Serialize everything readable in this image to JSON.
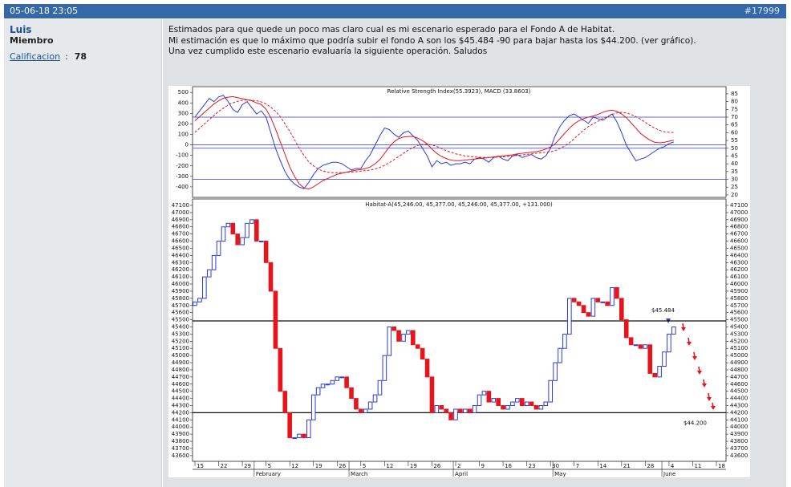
{
  "post": {
    "date": "05-06-18 23:05",
    "id": "#17999",
    "user": "Luis",
    "role": "Miembro",
    "rating_label": "Calificacion",
    "rating_separator": ":",
    "rating": 78,
    "body": [
      "Estimados para que quede un poco mas claro cual es mi escenario esperado para el Fondo A de Habitat.",
      "Mi estimación es que lo máximo que podría subir el  fondo A son los $45.484 -90 para bajar hasta los $44.200. (ver gráfico).",
      "Una vez cumplido este escenario evaluaría la siguiente operación. Saludos"
    ]
  },
  "chart_data": [
    {
      "type": "line",
      "title": "Relative Strength Index(55.3923), MACD (33.8603)",
      "ylim": [
        -500,
        555
      ],
      "yticks": [
        500,
        400,
        300,
        200,
        100,
        0,
        -100,
        -200,
        -300,
        -400
      ],
      "y2lim": [
        18.4,
        89.6
      ],
      "y2ticks": [
        85,
        80,
        75,
        70,
        65,
        60,
        55,
        50,
        45,
        40,
        35,
        30,
        25,
        20
      ],
      "levels": [
        0
      ],
      "y2_levels": [
        70,
        50,
        30
      ],
      "level_color": "#2b3bd6",
      "series": [
        {
          "color": "#2b3bd6",
          "axis": "y2",
          "values": [
            70,
            74,
            78,
            82,
            80,
            83,
            84,
            80,
            75,
            73,
            78,
            80,
            76,
            72,
            74,
            70,
            60,
            50,
            42,
            35,
            30,
            27,
            25,
            24,
            28,
            33,
            37,
            39,
            40,
            41,
            41,
            40,
            38,
            36,
            37,
            37,
            42,
            46,
            52,
            58,
            63,
            62,
            59,
            57,
            60,
            61,
            58,
            55,
            50,
            45,
            38,
            42,
            40,
            41,
            39,
            40,
            40,
            41,
            40,
            43,
            44,
            43,
            41,
            44,
            45,
            43,
            42,
            45,
            46,
            44,
            45,
            46,
            44,
            43,
            45,
            50,
            58,
            64,
            68,
            71,
            72,
            70,
            68,
            66,
            70,
            69,
            68,
            70,
            72,
            67,
            60,
            52,
            47,
            42,
            43,
            44,
            46,
            48,
            50,
            51,
            53,
            54,
            null,
            null,
            null,
            null,
            null,
            null,
            null,
            null,
            null
          ]
        },
        {
          "color": "#e8141c",
          "values": [
            230,
            270,
            310,
            350,
            390,
            420,
            445,
            455,
            460,
            450,
            440,
            430,
            420,
            400,
            385,
            340,
            260,
            150,
            30,
            -90,
            -210,
            -300,
            -370,
            -410,
            -420,
            -400,
            -370,
            -340,
            -320,
            -300,
            -280,
            -270,
            -260,
            -250,
            -240,
            -235,
            -225,
            -210,
            -180,
            -140,
            -80,
            -20,
            30,
            60,
            75,
            80,
            80,
            65,
            40,
            10,
            -40,
            -80,
            -110,
            -130,
            -145,
            -150,
            -150,
            -145,
            -140,
            -135,
            -130,
            -125,
            -120,
            -115,
            -110,
            -105,
            -100,
            -95,
            -85,
            -80,
            -75,
            -70,
            -65,
            -55,
            -40,
            -20,
            10,
            60,
            110,
            160,
            200,
            230,
            250,
            265,
            275,
            290,
            310,
            325,
            330,
            320,
            295,
            260,
            210,
            160,
            110,
            75,
            45,
            25,
            20,
            25,
            35,
            45,
            null,
            null,
            null,
            null,
            null,
            null,
            null,
            null,
            null
          ]
        },
        {
          "color": "#e8141c",
          "dash": true,
          "values": [
            120,
            160,
            200,
            240,
            280,
            320,
            350,
            380,
            400,
            415,
            425,
            430,
            425,
            420,
            410,
            390,
            360,
            320,
            270,
            200,
            130,
            50,
            -30,
            -100,
            -160,
            -200,
            -230,
            -250,
            -260,
            -265,
            -265,
            -265,
            -262,
            -258,
            -255,
            -250,
            -245,
            -240,
            -230,
            -215,
            -195,
            -170,
            -140,
            -110,
            -80,
            -50,
            -25,
            -5,
            5,
            5,
            0,
            -15,
            -35,
            -55,
            -70,
            -85,
            -95,
            -105,
            -110,
            -115,
            -118,
            -120,
            -120,
            -118,
            -116,
            -114,
            -110,
            -106,
            -100,
            -95,
            -90,
            -85,
            -80,
            -75,
            -70,
            -65,
            -55,
            -35,
            -10,
            20,
            60,
            100,
            140,
            175,
            200,
            225,
            250,
            270,
            290,
            305,
            310,
            305,
            290,
            270,
            245,
            215,
            185,
            160,
            140,
            125,
            120,
            118,
            null,
            null,
            null,
            null,
            null,
            null,
            null,
            null,
            null
          ]
        }
      ]
    },
    {
      "type": "candlestick",
      "title": "Habitat-A(45,246.00, 45,377.00, 45,246.00, 45,377.00, +131.000)",
      "categories": [
        "15",
        null,
        null,
        null,
        null,
        "22",
        null,
        null,
        null,
        null,
        "29",
        null,
        null,
        null,
        null,
        "5",
        null,
        null,
        null,
        null,
        "12",
        null,
        null,
        null,
        null,
        "19",
        null,
        null,
        null,
        null,
        "26",
        null,
        null,
        null,
        null,
        "5",
        null,
        null,
        null,
        null,
        "12",
        null,
        null,
        null,
        null,
        "19",
        null,
        null,
        null,
        null,
        "26",
        null,
        null,
        null,
        null,
        "2",
        null,
        null,
        null,
        null,
        "9",
        null,
        null,
        null,
        null,
        "16",
        null,
        null,
        null,
        null,
        "23",
        null,
        null,
        null,
        null,
        "30",
        null,
        null,
        null,
        null,
        "7",
        null,
        null,
        null,
        null,
        "14",
        null,
        null,
        null,
        null,
        "21",
        null,
        null,
        null,
        null,
        "28",
        null,
        null,
        null,
        null,
        "4",
        null,
        null,
        null,
        null,
        "11",
        null,
        null,
        null,
        null,
        "18"
      ],
      "months": [
        null,
        null,
        null,
        null,
        null,
        null,
        null,
        null,
        null,
        null,
        null,
        null,
        null,
        "February",
        null,
        null,
        null,
        null,
        null,
        null,
        null,
        null,
        null,
        null,
        null,
        null,
        null,
        null,
        null,
        null,
        null,
        null,
        null,
        "March",
        null,
        null,
        null,
        null,
        null,
        null,
        null,
        null,
        null,
        null,
        null,
        null,
        null,
        null,
        null,
        null,
        null,
        null,
        null,
        null,
        null,
        "April",
        null,
        null,
        null,
        null,
        null,
        null,
        null,
        null,
        null,
        null,
        null,
        null,
        null,
        null,
        null,
        null,
        null,
        null,
        null,
        null,
        "May",
        null,
        null,
        null,
        null,
        null,
        null,
        null,
        null,
        null,
        null,
        null,
        null,
        null,
        null,
        null,
        null,
        null,
        null,
        null,
        null,
        null,
        null,
        "June",
        null,
        null,
        null,
        null,
        null,
        null,
        null,
        null,
        null,
        null,
        null
      ],
      "open": [
        45700,
        45750,
        45800,
        46100,
        46200,
        46400,
        46600,
        46800,
        46850,
        46700,
        46550,
        46650,
        46850,
        46900,
        46600,
        46600,
        46300,
        45900,
        45100,
        44500,
        44200,
        43850,
        43850,
        43900,
        43850,
        44100,
        44450,
        44550,
        44600,
        44600,
        44650,
        44700,
        44700,
        44550,
        44400,
        44250,
        44200,
        44250,
        44350,
        44450,
        44650,
        45000,
        45400,
        45350,
        45200,
        45300,
        45350,
        45150,
        45100,
        44950,
        44700,
        44200,
        44300,
        44250,
        44200,
        44100,
        44250,
        44200,
        44250,
        44200,
        44300,
        44450,
        44500,
        44350,
        44400,
        44300,
        44250,
        44300,
        44350,
        44400,
        44300,
        44350,
        44300,
        44250,
        44300,
        44350,
        44650,
        44900,
        45100,
        45300,
        45800,
        45750,
        45700,
        45600,
        45550,
        45800,
        45750,
        45750,
        45700,
        45950,
        45800,
        45500,
        45250,
        45150,
        45150,
        45100,
        45150,
        44750,
        44700,
        44850,
        45050,
        45300,
        null,
        null,
        null,
        null,
        null,
        null,
        null,
        null,
        null
      ],
      "close": [
        45750,
        45800,
        46100,
        46200,
        46400,
        46600,
        46800,
        46850,
        46700,
        46550,
        46650,
        46850,
        46900,
        46600,
        46600,
        46300,
        45900,
        45100,
        44500,
        44200,
        43850,
        43850,
        43900,
        43850,
        44100,
        44450,
        44550,
        44600,
        44600,
        44650,
        44700,
        44700,
        44550,
        44400,
        44250,
        44200,
        44250,
        44350,
        44450,
        44650,
        45000,
        45400,
        45350,
        45200,
        45300,
        45350,
        45150,
        45100,
        44950,
        44700,
        44200,
        44300,
        44250,
        44200,
        44100,
        44250,
        44200,
        44250,
        44200,
        44300,
        44450,
        44500,
        44350,
        44400,
        44300,
        44250,
        44300,
        44350,
        44400,
        44300,
        44350,
        44300,
        44250,
        44300,
        44350,
        44650,
        44900,
        45100,
        45300,
        45800,
        45750,
        45700,
        45600,
        45550,
        45800,
        45750,
        45750,
        45700,
        45950,
        45800,
        45500,
        45250,
        45150,
        45150,
        45100,
        45150,
        44750,
        44700,
        44850,
        45050,
        45300,
        45400,
        null,
        null,
        null,
        null,
        null,
        null,
        null,
        null,
        null
      ],
      "up_color": "#2b3bd6",
      "down_color": "#e8141c",
      "ylim": [
        43520,
        47190
      ],
      "yticks": [
        47100,
        47000,
        46900,
        46800,
        46700,
        46600,
        46500,
        46400,
        46300,
        46200,
        46100,
        46000,
        45900,
        45800,
        45700,
        45600,
        45500,
        45400,
        45300,
        45200,
        45100,
        45000,
        44900,
        44800,
        44700,
        44600,
        44500,
        44400,
        44300,
        44200,
        44100,
        44000,
        43900,
        43800,
        43700,
        43600
      ],
      "reference_lines": [
        {
          "value": 45484,
          "label": "$45.484"
        },
        {
          "value": 44200,
          "label": "$44.200"
        }
      ]
    }
  ]
}
